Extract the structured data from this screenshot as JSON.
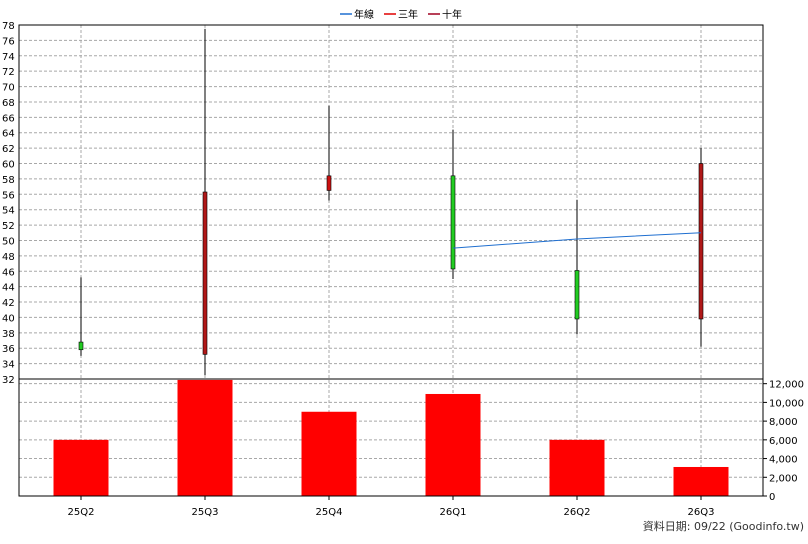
{
  "legend": [
    {
      "label": "年線",
      "color": "#1f6fd0"
    },
    {
      "label": "三年",
      "color": "#e00000"
    },
    {
      "label": "十年",
      "color": "#a00020"
    }
  ],
  "footer": {
    "source": "資料日期: 09/22  (Goodinfo.tw)"
  },
  "chart_data": [
    {
      "type": "candlestick",
      "categories": [
        "25Q2",
        "25Q3",
        "25Q4",
        "26Q1",
        "26Q2",
        "26Q3"
      ],
      "ylim": [
        32,
        78
      ],
      "ytick_step": 2,
      "grid": true,
      "legend_position": "top-center",
      "candles": [
        {
          "open": 35.8,
          "high": 45.2,
          "low": 35.0,
          "close": 36.8,
          "color": "#22cc22"
        },
        {
          "open": 35.2,
          "high": 77.5,
          "low": 32.5,
          "close": 56.3,
          "color": "#b01818"
        },
        {
          "open": 56.5,
          "high": 67.5,
          "low": 55.2,
          "close": 58.4,
          "color": "#cc1111"
        },
        {
          "open": 58.4,
          "high": 64.4,
          "low": 45.0,
          "close": 46.3,
          "color": "#22cc22"
        },
        {
          "open": 46.1,
          "high": 55.3,
          "low": 37.8,
          "close": 39.8,
          "color": "#22cc22"
        },
        {
          "open": 39.8,
          "high": 62.0,
          "low": 36.2,
          "close": 60.0,
          "color": "#b01818"
        }
      ],
      "series": [
        {
          "name": "年線",
          "points": [
            [
              "26Q1",
              49.0
            ],
            [
              "26Q2",
              50.2
            ],
            [
              "26Q3",
              51.0
            ]
          ],
          "color": "#1f6fd0"
        }
      ]
    },
    {
      "type": "bar",
      "categories": [
        "25Q2",
        "25Q3",
        "25Q4",
        "26Q1",
        "26Q2",
        "26Q3"
      ],
      "values": [
        6000,
        12400,
        9000,
        10900,
        6000,
        3100
      ],
      "ylim": [
        0,
        12500
      ],
      "yticks": [
        0,
        2000,
        4000,
        6000,
        8000,
        10000,
        12000
      ],
      "ytick_labels": [
        "0",
        "2,000",
        "4,000",
        "6,000",
        "8,000",
        "10,000",
        "12,000"
      ],
      "bar_color": "#ff0000",
      "grid": true
    }
  ]
}
